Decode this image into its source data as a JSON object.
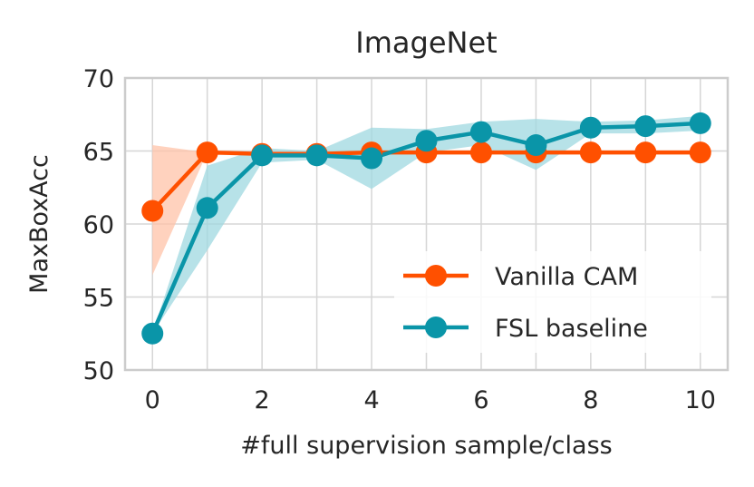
{
  "chart_data": {
    "type": "line",
    "title": "ImageNet",
    "xlabel": "#full supervision sample/class",
    "ylabel": "MaxBoxAcc",
    "xlim": [
      -0.5,
      10.5
    ],
    "ylim": [
      50,
      70
    ],
    "xticks": [
      0,
      2,
      4,
      6,
      8,
      10
    ],
    "yticks": [
      50,
      55,
      60,
      65,
      70
    ],
    "x_gridlines": [
      0,
      1,
      2,
      3,
      4,
      5,
      6,
      7,
      8,
      9,
      10
    ],
    "grid": true,
    "legend_position": "lower-right",
    "series": [
      {
        "name": "Vanilla CAM",
        "color": "#ff5000",
        "band_color": "#ffc3a8",
        "x": [
          0,
          1,
          2,
          3,
          4,
          5,
          6,
          7,
          8,
          9,
          10
        ],
        "values": [
          60.9,
          64.9,
          64.8,
          64.8,
          64.9,
          64.9,
          64.9,
          64.9,
          64.9,
          64.9,
          64.9
        ],
        "band_lower": [
          56.5,
          64.9,
          64.8,
          64.8,
          64.9,
          64.9,
          64.9,
          64.9,
          64.9,
          64.9,
          64.9
        ],
        "band_upper": [
          65.4,
          64.9,
          64.8,
          64.8,
          64.9,
          64.9,
          64.9,
          64.9,
          64.9,
          64.9,
          64.9
        ]
      },
      {
        "name": "FSL baseline",
        "color": "#0a95a8",
        "band_color": "#9fd8e0",
        "x": [
          0,
          1,
          2,
          3,
          4,
          5,
          6,
          7,
          8,
          9,
          10
        ],
        "values": [
          52.5,
          61.1,
          64.7,
          64.7,
          64.5,
          65.7,
          66.3,
          65.4,
          66.6,
          66.7,
          66.9
        ],
        "band_lower": [
          52.5,
          58.2,
          64.2,
          64.4,
          62.4,
          64.9,
          65.4,
          63.7,
          66.2,
          66.2,
          66.4
        ],
        "band_upper": [
          52.5,
          64.0,
          65.2,
          65.0,
          66.6,
          66.5,
          67.0,
          67.2,
          67.0,
          67.1,
          67.4
        ]
      }
    ]
  }
}
